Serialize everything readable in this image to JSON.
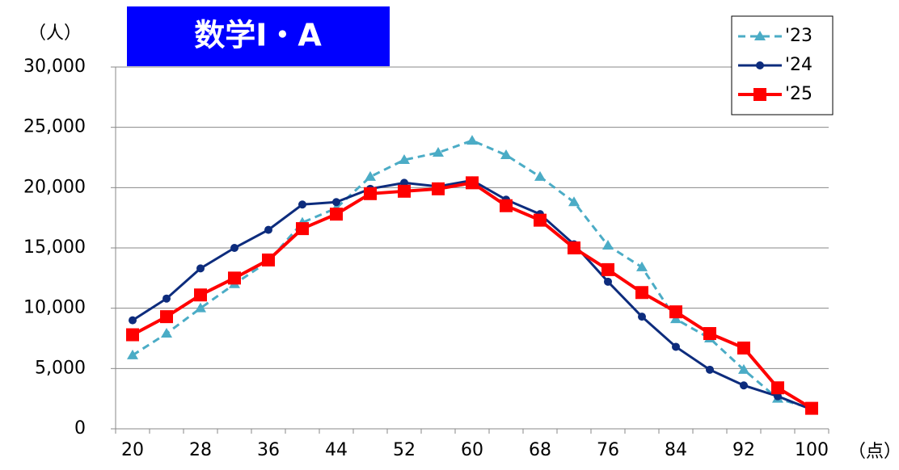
{
  "chart_data": {
    "type": "line",
    "title": "数学Ⅰ・A",
    "y_unit": "（人）",
    "x_unit": "（点）",
    "categories": [
      "20",
      null,
      "28",
      null,
      "36",
      null,
      "44",
      null,
      "52",
      null,
      "60",
      null,
      "68",
      null,
      "76",
      null,
      "84",
      null,
      "92",
      null,
      "100"
    ],
    "series": [
      {
        "name": "'23",
        "color": "#4bacc6",
        "marker": "triangle",
        "dashed": true,
        "values": [
          6100,
          7900,
          10000,
          12000,
          13900,
          17100,
          18300,
          20900,
          22300,
          22900,
          23900,
          22700,
          20900,
          18800,
          15200,
          13400,
          9100,
          7500,
          4900,
          2500,
          1700
        ]
      },
      {
        "name": "'24",
        "color": "#0d2c7d",
        "marker": "circle",
        "dashed": false,
        "values": [
          9000,
          10800,
          13300,
          15000,
          16500,
          18600,
          18800,
          19900,
          20400,
          20100,
          20600,
          19000,
          17800,
          15300,
          12200,
          9300,
          6800,
          4900,
          3600,
          2700,
          1600
        ]
      },
      {
        "name": "'25",
        "color": "#ff0000",
        "marker": "square",
        "dashed": false,
        "values": [
          7800,
          9300,
          11100,
          12500,
          14000,
          16600,
          17800,
          19500,
          19700,
          19900,
          20400,
          18500,
          17300,
          15000,
          13200,
          11300,
          9700,
          7900,
          6700,
          3400,
          1700
        ]
      }
    ],
    "ylim": [
      0,
      30000
    ],
    "yticks": [
      0,
      {
        "value": 5000,
        "label": "5,000"
      },
      {
        "value": 10000,
        "label": "10,000"
      },
      {
        "value": 15000,
        "label": "15,000"
      },
      {
        "value": 20000,
        "label": "20,000"
      },
      {
        "value": 25000,
        "label": "25,000"
      },
      {
        "value": 30000,
        "label": "30,000"
      }
    ],
    "grid": true,
    "legend": "top-right"
  }
}
